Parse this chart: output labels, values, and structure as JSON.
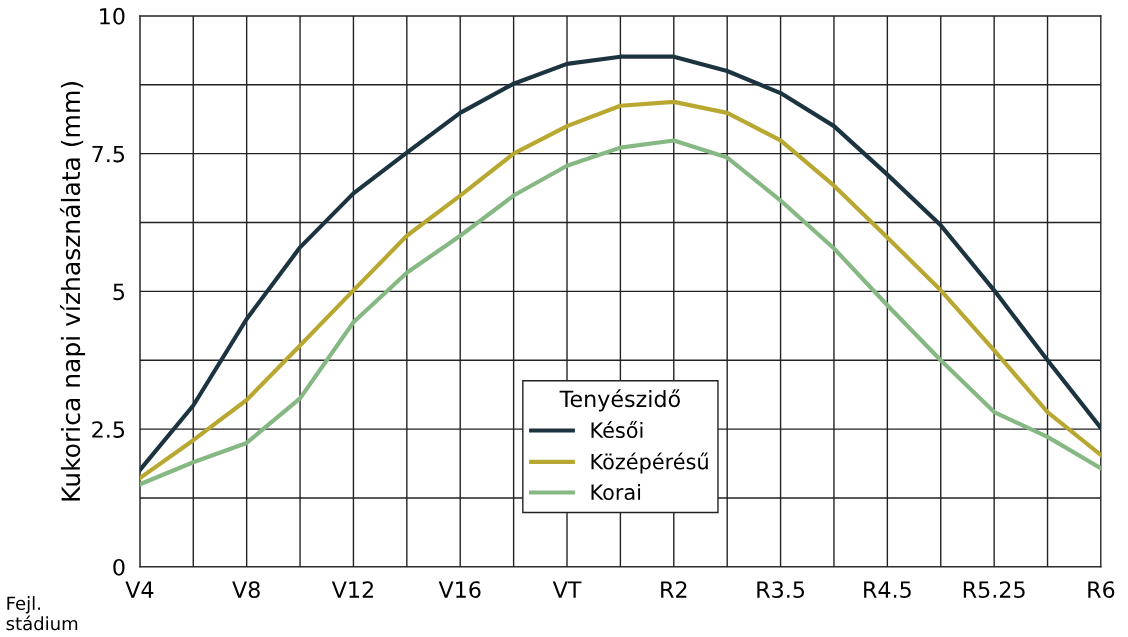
{
  "chart_data": {
    "type": "line",
    "ylabel": "Kukorica napi vízhasználata (mm)",
    "legend_title": "Tenyészidő",
    "annotations": [
      "Fejl.\nstádium"
    ],
    "categories": [
      "V4",
      null,
      "V8",
      null,
      "V12",
      null,
      "V16",
      null,
      "VT",
      null,
      "R2",
      null,
      "R3.5",
      null,
      "R4.5",
      null,
      "R5.25",
      null,
      "R6"
    ],
    "series": [
      {
        "name": "Késői",
        "color": "#1c3340",
        "values": [
          1.76,
          2.93,
          4.5,
          5.8,
          6.78,
          7.52,
          8.24,
          8.77,
          9.13,
          9.26,
          9.26,
          9.0,
          8.6,
          8.0,
          7.12,
          6.2,
          5.02,
          3.75,
          2.52
        ]
      },
      {
        "name": "Középérésű",
        "color": "#b8a832",
        "values": [
          1.61,
          2.3,
          3.03,
          4.02,
          5.02,
          6.01,
          6.74,
          7.5,
          8.0,
          8.37,
          8.44,
          8.24,
          7.74,
          6.92,
          5.98,
          5.02,
          3.93,
          2.81,
          2.03
        ]
      },
      {
        "name": "Korai",
        "color": "#86b884",
        "values": [
          1.5,
          1.9,
          2.25,
          3.06,
          4.44,
          5.34,
          6.01,
          6.74,
          7.28,
          7.61,
          7.74,
          7.43,
          6.65,
          5.78,
          4.75,
          3.75,
          2.81,
          2.36,
          1.79
        ]
      }
    ],
    "ylim": [
      0,
      10
    ],
    "yticks": [
      0,
      {
        "value": 1.25,
        "label": null
      },
      2.5,
      {
        "value": 3.75,
        "label": null
      },
      5,
      {
        "value": 6.25,
        "label": null
      },
      7.5,
      {
        "value": 8.75,
        "label": null
      },
      10
    ],
    "grid": true,
    "legend": "bottom",
    "marker": "none",
    "line_style": "solid"
  }
}
